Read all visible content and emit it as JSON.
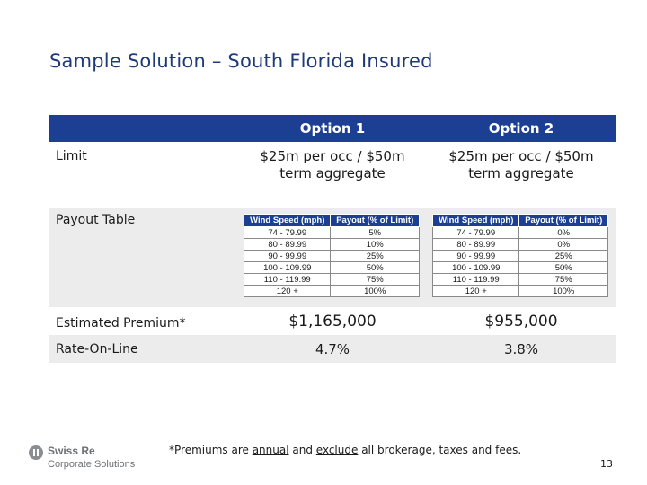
{
  "title": "Sample Solution – South Florida Insured",
  "table": {
    "option1_header": "Option 1",
    "option2_header": "Option 2",
    "limit_label": "Limit",
    "limit_option1_line1": "$25m per occ / $50m",
    "limit_option1_line2": "term aggregate",
    "limit_option2_line1": "$25m per occ / $50m",
    "limit_option2_line2": "term aggregate",
    "payout_label": "Payout Table",
    "payout_col_wind": "Wind Speed (mph)",
    "payout_col_payout": "Payout (% of Limit)",
    "payout_option1": [
      {
        "wind": "74 - 79.99",
        "payout": "5%"
      },
      {
        "wind": "80 - 89.99",
        "payout": "10%"
      },
      {
        "wind": "90 - 99.99",
        "payout": "25%"
      },
      {
        "wind": "100 - 109.99",
        "payout": "50%"
      },
      {
        "wind": "110 - 119.99",
        "payout": "75%"
      },
      {
        "wind": "120 +",
        "payout": "100%"
      }
    ],
    "payout_option2": [
      {
        "wind": "74 - 79.99",
        "payout": "0%"
      },
      {
        "wind": "80 - 89.99",
        "payout": "0%"
      },
      {
        "wind": "90 - 99.99",
        "payout": "25%"
      },
      {
        "wind": "100 - 109.99",
        "payout": "50%"
      },
      {
        "wind": "110 - 119.99",
        "payout": "75%"
      },
      {
        "wind": "120 +",
        "payout": "100%"
      }
    ],
    "premium_label": "Estimated Premium*",
    "premium_option1": "$1,165,000",
    "premium_option2": "$955,000",
    "rol_label": "Rate-On-Line",
    "rol_option1": "4.7%",
    "rol_option2": "3.8%"
  },
  "footnote": {
    "part1": "*Premiums are ",
    "annual": "annual",
    "part2": " and ",
    "exclude": "exclude",
    "part3": " all brokerage, taxes and fees."
  },
  "logo": {
    "icon": "swiss-re-logo-icon",
    "name": "Swiss Re",
    "subtitle": "Corporate Solutions"
  },
  "page_number": "13",
  "colors": {
    "header_blue": "#1c3f94",
    "title_blue": "#1f3a78",
    "row_gray": "#ececec"
  }
}
